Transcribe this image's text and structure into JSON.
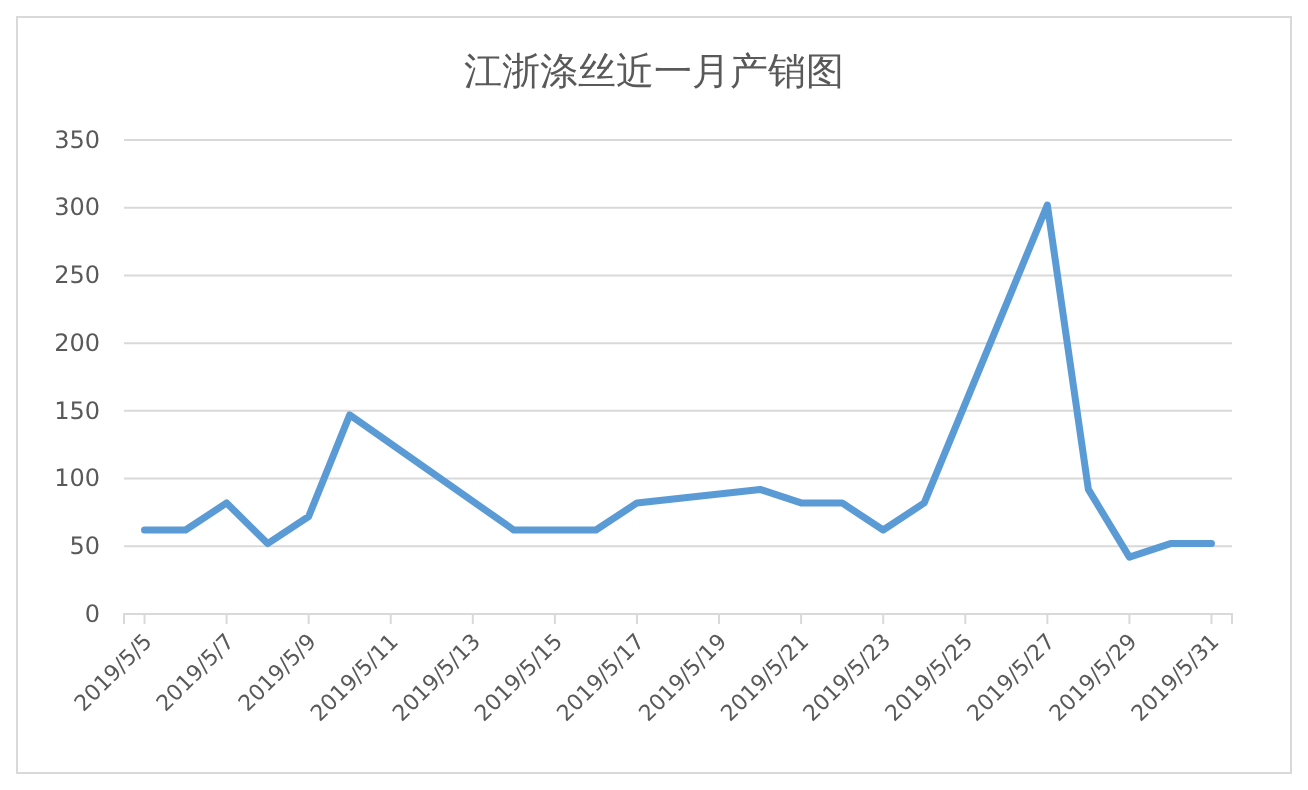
{
  "chart_data": {
    "type": "line",
    "title": "江浙涤丝近一月产销图",
    "x": [
      "2019-05-05",
      "2019-05-06",
      "2019-05-07",
      "2019-05-08",
      "2019-05-09",
      "2019-05-10",
      "2019-05-14",
      "2019-05-15",
      "2019-05-16",
      "2019-05-17",
      "2019-05-20",
      "2019-05-21",
      "2019-05-22",
      "2019-05-23",
      "2019-05-24",
      "2019-05-27",
      "2019-05-28",
      "2019-05-29",
      "2019-05-30",
      "2019-05-31"
    ],
    "series": [
      {
        "color": "#5b9bd5",
        "values": [
          62,
          62,
          82,
          52,
          72,
          147,
          62,
          62,
          62,
          82,
          92,
          82,
          82,
          62,
          82,
          302,
          92,
          42,
          52,
          52
        ]
      }
    ],
    "xlim": [
      "2019-05-04T12:00",
      "2019-05-31T12:00"
    ],
    "xticks": [
      {
        "value": "2019-05-05",
        "label": "2019/5/5"
      },
      {
        "value": "2019-05-07",
        "label": "2019/5/7"
      },
      {
        "value": "2019-05-09",
        "label": "2019/5/9"
      },
      {
        "value": "2019-05-11",
        "label": "2019/5/11"
      },
      {
        "value": "2019-05-13",
        "label": "2019/5/13"
      },
      {
        "value": "2019-05-15",
        "label": "2019/5/15"
      },
      {
        "value": "2019-05-17",
        "label": "2019/5/17"
      },
      {
        "value": "2019-05-19",
        "label": "2019/5/19"
      },
      {
        "value": "2019-05-21",
        "label": "2019/5/21"
      },
      {
        "value": "2019-05-23",
        "label": "2019/5/23"
      },
      {
        "value": "2019-05-25",
        "label": "2019/5/25"
      },
      {
        "value": "2019-05-27",
        "label": "2019/5/27"
      },
      {
        "value": "2019-05-29",
        "label": "2019/5/29"
      },
      {
        "value": "2019-05-31",
        "label": "2019/5/31"
      }
    ],
    "ylim": [
      0,
      350
    ],
    "yticks": [
      0,
      50,
      100,
      150,
      200,
      250,
      300,
      350
    ],
    "grid": "y",
    "marker": "none",
    "line_style": "solid"
  }
}
